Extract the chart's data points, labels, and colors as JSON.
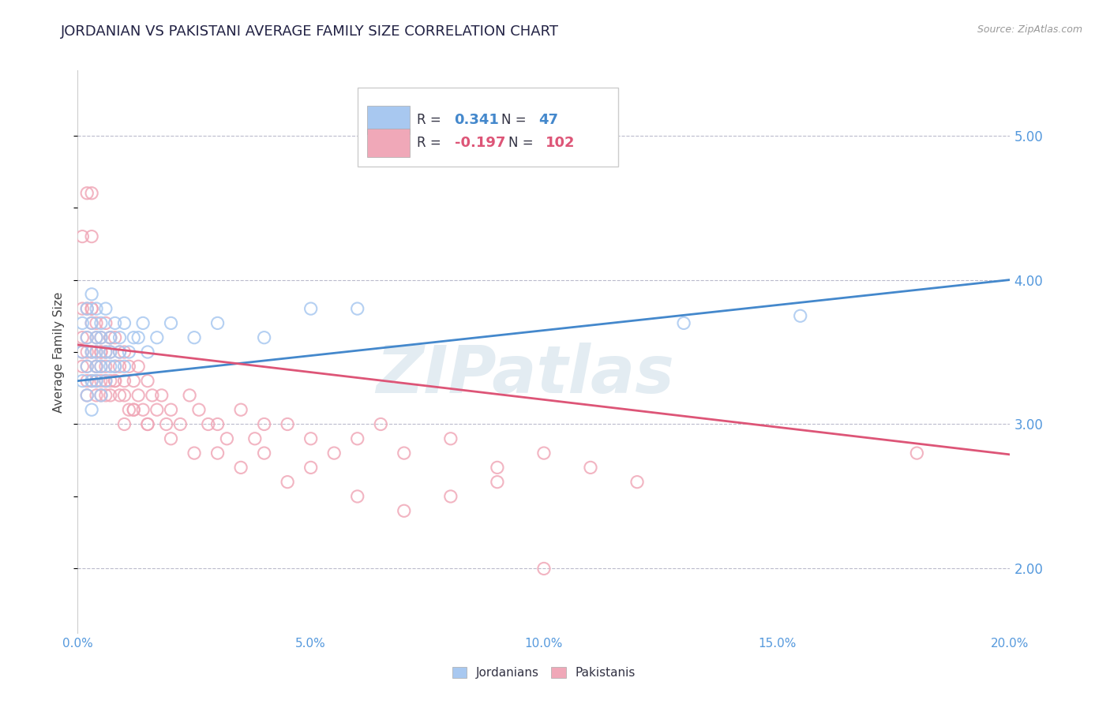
{
  "title": "JORDANIAN VS PAKISTANI AVERAGE FAMILY SIZE CORRELATION CHART",
  "source": "Source: ZipAtlas.com",
  "ylabel": "Average Family Size",
  "xlim": [
    0.0,
    0.2
  ],
  "ylim": [
    1.55,
    5.45
  ],
  "yticks": [
    2.0,
    3.0,
    4.0,
    5.0
  ],
  "xticks": [
    0.0,
    0.05,
    0.1,
    0.15,
    0.2
  ],
  "xticklabels": [
    "0.0%",
    "5.0%",
    "10.0%",
    "15.0%",
    "20.0%"
  ],
  "blue_color": "#A8C8F0",
  "pink_color": "#F0A8B8",
  "blue_line_color": "#4488CC",
  "pink_line_color": "#DD5577",
  "axis_color": "#5599DD",
  "R_blue": 0.341,
  "N_blue": 47,
  "R_pink": -0.197,
  "N_pink": 102,
  "watermark": "ZIPatlas",
  "background_color": "#FFFFFF",
  "title_fontsize": 13,
  "title_color": "#222244",
  "blue_intercept": 3.3,
  "blue_slope": 3.5,
  "pink_intercept": 3.55,
  "pink_slope": -3.8,
  "jordanian_x": [
    0.001,
    0.001,
    0.001,
    0.002,
    0.002,
    0.002,
    0.002,
    0.003,
    0.003,
    0.003,
    0.003,
    0.003,
    0.004,
    0.004,
    0.004,
    0.004,
    0.004,
    0.005,
    0.005,
    0.005,
    0.005,
    0.006,
    0.006,
    0.006,
    0.007,
    0.007,
    0.007,
    0.008,
    0.008,
    0.009,
    0.009,
    0.01,
    0.01,
    0.011,
    0.012,
    0.013,
    0.014,
    0.015,
    0.017,
    0.02,
    0.025,
    0.03,
    0.04,
    0.05,
    0.06,
    0.13,
    0.155
  ],
  "jordanian_y": [
    3.3,
    3.5,
    3.7,
    3.2,
    3.4,
    3.6,
    3.8,
    3.3,
    3.5,
    3.7,
    3.9,
    3.1,
    3.4,
    3.6,
    3.8,
    3.3,
    3.5,
    3.4,
    3.6,
    3.2,
    3.7,
    3.5,
    3.3,
    3.8,
    3.6,
    3.4,
    3.5,
    3.7,
    3.4,
    3.6,
    3.5,
    3.4,
    3.7,
    3.5,
    3.6,
    3.6,
    3.7,
    3.5,
    3.6,
    3.7,
    3.6,
    3.7,
    3.6,
    3.8,
    3.8,
    3.7,
    3.75
  ],
  "pakistani_x": [
    0.001,
    0.001,
    0.001,
    0.001,
    0.001,
    0.002,
    0.002,
    0.002,
    0.002,
    0.002,
    0.002,
    0.002,
    0.003,
    0.003,
    0.003,
    0.003,
    0.003,
    0.003,
    0.004,
    0.004,
    0.004,
    0.004,
    0.004,
    0.004,
    0.005,
    0.005,
    0.005,
    0.005,
    0.005,
    0.006,
    0.006,
    0.006,
    0.006,
    0.007,
    0.007,
    0.007,
    0.007,
    0.008,
    0.008,
    0.008,
    0.009,
    0.009,
    0.009,
    0.01,
    0.01,
    0.01,
    0.011,
    0.011,
    0.012,
    0.012,
    0.013,
    0.013,
    0.014,
    0.015,
    0.015,
    0.016,
    0.017,
    0.018,
    0.019,
    0.02,
    0.022,
    0.024,
    0.026,
    0.028,
    0.03,
    0.032,
    0.035,
    0.038,
    0.04,
    0.045,
    0.05,
    0.055,
    0.06,
    0.065,
    0.07,
    0.08,
    0.09,
    0.1,
    0.11,
    0.12,
    0.003,
    0.004,
    0.005,
    0.006,
    0.007,
    0.008,
    0.01,
    0.012,
    0.015,
    0.02,
    0.025,
    0.03,
    0.035,
    0.04,
    0.045,
    0.05,
    0.06,
    0.07,
    0.08,
    0.09,
    0.1,
    0.18
  ],
  "pakistani_y": [
    3.6,
    3.8,
    4.3,
    3.4,
    3.5,
    4.6,
    3.2,
    3.5,
    3.8,
    3.3,
    3.6,
    3.4,
    3.7,
    3.5,
    3.3,
    4.3,
    3.8,
    4.6,
    3.4,
    3.6,
    3.2,
    3.5,
    3.3,
    3.7,
    3.5,
    3.3,
    3.6,
    3.2,
    3.4,
    3.5,
    3.3,
    3.7,
    3.4,
    3.6,
    3.3,
    3.5,
    3.2,
    3.4,
    3.6,
    3.3,
    3.5,
    3.2,
    3.4,
    3.3,
    3.5,
    3.2,
    3.4,
    3.1,
    3.3,
    3.1,
    3.2,
    3.4,
    3.1,
    3.3,
    3.0,
    3.2,
    3.1,
    3.2,
    3.0,
    3.1,
    3.0,
    3.2,
    3.1,
    3.0,
    3.0,
    2.9,
    3.1,
    2.9,
    3.0,
    3.0,
    2.9,
    2.8,
    2.9,
    3.0,
    2.8,
    2.9,
    2.7,
    2.8,
    2.7,
    2.6,
    3.8,
    3.4,
    3.5,
    3.2,
    3.6,
    3.3,
    3.0,
    3.1,
    3.0,
    2.9,
    2.8,
    2.8,
    2.7,
    2.8,
    2.6,
    2.7,
    2.5,
    2.4,
    2.5,
    2.6,
    2.0,
    2.8
  ]
}
